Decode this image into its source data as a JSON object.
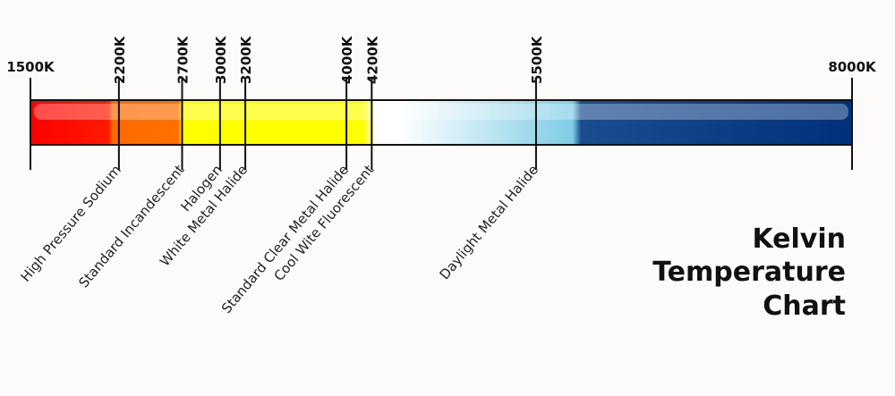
{
  "chart_data": {
    "type": "scale",
    "title": [
      "Kelvin",
      "Temperature",
      "Chart"
    ],
    "xlim": [
      1500,
      8000
    ],
    "xticks": [
      {
        "value": 1500,
        "label": "1500K"
      },
      {
        "value": 2200,
        "label": "2200K"
      },
      {
        "value": 2700,
        "label": "2700K"
      },
      {
        "value": 3000,
        "label": "3000K"
      },
      {
        "value": 3200,
        "label": "3200K"
      },
      {
        "value": 4000,
        "label": "4000K"
      },
      {
        "value": 4200,
        "label": "4200K"
      },
      {
        "value": 5500,
        "label": "5500K"
      },
      {
        "value": 8000,
        "label": "8000K"
      }
    ],
    "annotations": [
      {
        "text": "High Pressure Sodium",
        "x": 2200
      },
      {
        "text": "Standard Incandescent",
        "x": 2700
      },
      {
        "text": "Halogen",
        "x": 3000
      },
      {
        "text": "White Metal Halide",
        "x": 3200
      },
      {
        "text": "Standard Clear Metal Halide",
        "x": 4000
      },
      {
        "text": "Cool Wite Fluorescent",
        "x": 4200
      },
      {
        "text": "Daylight Metal Halide",
        "x": 5500
      }
    ]
  }
}
